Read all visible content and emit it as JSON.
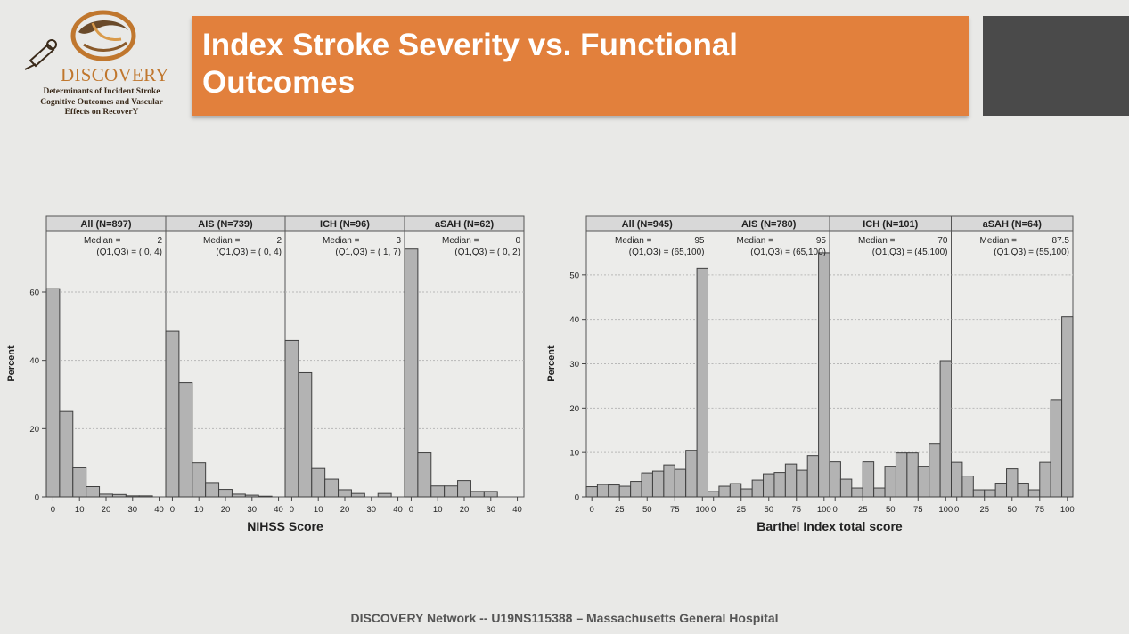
{
  "logo": {
    "name": "DISCOVERY",
    "subtitle_lines": [
      "Determinants of Incident Stroke",
      "Cognitive Outcomes and Vascular",
      "Effects on RecoverY"
    ]
  },
  "slide": {
    "title": "Index Stroke Severity vs. Functional Outcomes",
    "footer": "DISCOVERY Network -- U19NS115388 – Massachusetts General Hospital"
  },
  "colors": {
    "banner": "#e2803c",
    "bar_fill": "#b3b3b3",
    "bar_stroke": "#3f3f3f",
    "panel_header": "#d8d8d8"
  },
  "chart_data": [
    {
      "type": "bar",
      "xlabel": "NIHSS Score",
      "ylabel": "Percent",
      "xlim": [
        -2.5,
        42.5
      ],
      "ylim": [
        0,
        78
      ],
      "xticks": [
        0,
        10,
        20,
        30,
        40
      ],
      "yticks": [
        0,
        20,
        40,
        60
      ],
      "bin_width": 5,
      "bin_starts": [
        -2.5,
        2.5,
        7.5,
        12.5,
        17.5,
        22.5,
        27.5,
        32.5,
        37.5
      ],
      "grid": true,
      "panels": [
        {
          "label": "All (N=897)",
          "median_label": "Median =",
          "median_value": "2",
          "iqr_label": "(Q1,Q3) = ( 0,  4)",
          "values": [
            61,
            25,
            8.5,
            3,
            0.8,
            0.7,
            0.3,
            0.3,
            0
          ]
        },
        {
          "label": "AIS (N=739)",
          "median_label": "Median =",
          "median_value": "2",
          "iqr_label": "(Q1,Q3) = ( 0,  4)",
          "values": [
            48.5,
            33.5,
            10,
            4.2,
            2.2,
            0.8,
            0.5,
            0.2,
            0
          ]
        },
        {
          "label": "ICH (N=96)",
          "median_label": "Median =",
          "median_value": "3",
          "iqr_label": "(Q1,Q3) = ( 1,  7)",
          "values": [
            45.8,
            36.4,
            8.3,
            5.2,
            2.1,
            1,
            0,
            1,
            0
          ]
        },
        {
          "label": "aSAH (N=62)",
          "median_label": "Median =",
          "median_value": "0",
          "iqr_label": "(Q1,Q3) = ( 0,  2)",
          "values": [
            72.6,
            12.9,
            3.2,
            3.2,
            4.8,
            1.6,
            1.6,
            0,
            0
          ]
        }
      ]
    },
    {
      "type": "bar",
      "xlabel": "Barthel Index total score",
      "ylabel": "Percent",
      "xlim": [
        -5,
        105
      ],
      "ylim": [
        0,
        60
      ],
      "xticks": [
        0,
        25,
        50,
        75,
        100
      ],
      "yticks": [
        0,
        10,
        20,
        30,
        40,
        50
      ],
      "bin_width": 10,
      "bin_starts": [
        -5,
        5,
        15,
        25,
        35,
        45,
        55,
        65,
        75,
        85,
        95
      ],
      "grid": true,
      "panels": [
        {
          "label": "All (N=945)",
          "median_label": "Median =",
          "median_value": "95",
          "iqr_label": "(Q1,Q3) = (65,100)",
          "values": [
            2.3,
            2.8,
            2.7,
            2.4,
            3.5,
            5.4,
            5.8,
            7.2,
            6.2,
            10.5,
            51.5
          ]
        },
        {
          "label": "AIS (N=780)",
          "median_label": "Median =",
          "median_value": "95",
          "iqr_label": "(Q1,Q3) = (65,100)",
          "values": [
            1.2,
            2.4,
            3,
            1.8,
            3.8,
            5.2,
            5.5,
            7.4,
            6,
            9.3,
            55
          ]
        },
        {
          "label": "ICH (N=101)",
          "median_label": "Median =",
          "median_value": "70",
          "iqr_label": "(Q1,Q3) = (45,100)",
          "values": [
            7.9,
            4,
            2,
            7.9,
            2,
            6.9,
            9.9,
            9.9,
            6.9,
            11.9,
            30.7
          ]
        },
        {
          "label": "aSAH (N=64)",
          "median_label": "Median =",
          "median_value": "87.5",
          "iqr_label": "(Q1,Q3) = (55,100)",
          "values": [
            7.8,
            4.7,
            1.6,
            1.6,
            3.1,
            6.3,
            3.1,
            1.6,
            7.8,
            21.9,
            40.6
          ]
        }
      ]
    }
  ]
}
